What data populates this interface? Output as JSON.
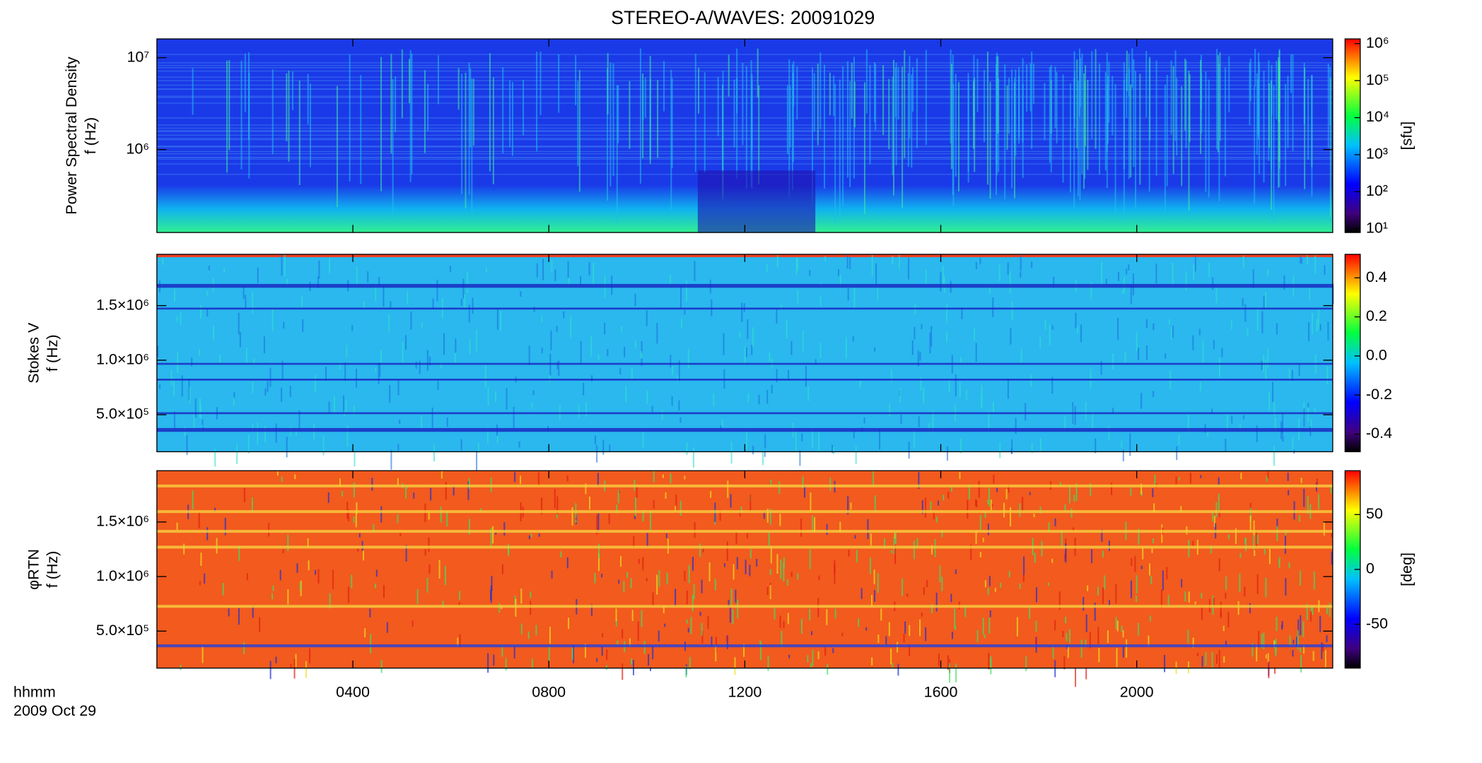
{
  "chart_data": [
    {
      "type": "spectrogram",
      "title": "STEREO-A/WAVES: 20091029",
      "ylabel": [
        "Power Spectral Density",
        "f (Hz)"
      ],
      "ylog": true,
      "ylim": [
        125000,
        16000000
      ],
      "yticks": [
        {
          "value": 1000000,
          "label": "10⁶"
        },
        {
          "value": 10000000,
          "label": "10⁷"
        }
      ],
      "xlim": [
        0,
        24
      ],
      "colorbar": {
        "log": true,
        "lim": [
          7.9,
          1340000
        ],
        "label": "[sfu]",
        "ticks": [
          {
            "value": 10,
            "label": "10¹"
          },
          {
            "value": 100,
            "label": "10²"
          },
          {
            "value": 1000,
            "label": "10³"
          },
          {
            "value": 10000,
            "label": "10⁴"
          },
          {
            "value": 100000,
            "label": "10⁵"
          },
          {
            "value": 1000000,
            "label": "10⁶"
          }
        ]
      }
    },
    {
      "type": "spectrogram",
      "ylabel": [
        "Stokes V",
        "f (Hz)"
      ],
      "ylog": false,
      "ylim": [
        161000,
        1970000
      ],
      "yticks": [
        {
          "value": 500000,
          "label": "5.0×10⁵"
        },
        {
          "value": 1000000,
          "label": "1.0×10⁶"
        },
        {
          "value": 1500000,
          "label": "1.5×10⁶"
        }
      ],
      "xlim": [
        0,
        24
      ],
      "colorbar": {
        "log": false,
        "lim": [
          -0.49,
          0.52
        ],
        "ticks": [
          -0.4,
          -0.2,
          {
            "value": 0,
            "label": "0.0"
          },
          0.2,
          0.4
        ]
      }
    },
    {
      "type": "spectrogram",
      "ylabel": [
        "φRTN",
        "f (Hz)"
      ],
      "ylog": false,
      "ylim": [
        161000,
        1970000
      ],
      "yticks": [
        {
          "value": 500000,
          "label": "5.0×10⁵"
        },
        {
          "value": 1000000,
          "label": "1.0×10⁶"
        },
        {
          "value": 1500000,
          "label": "1.5×10⁶"
        }
      ],
      "xlim": [
        0,
        24
      ],
      "xticks": [
        {
          "value": 4,
          "label": "0400"
        },
        {
          "value": 8,
          "label": "0800"
        },
        {
          "value": 12,
          "label": "1200"
        },
        {
          "value": 16,
          "label": "1600"
        },
        {
          "value": 20,
          "label": "2000"
        }
      ],
      "x_label": "hhmm",
      "date_label": "2009 Oct 29",
      "colorbar": {
        "log": false,
        "lim": [
          -90,
          90
        ],
        "label": "[deg]",
        "ticks": [
          -50,
          0,
          50
        ]
      }
    }
  ]
}
